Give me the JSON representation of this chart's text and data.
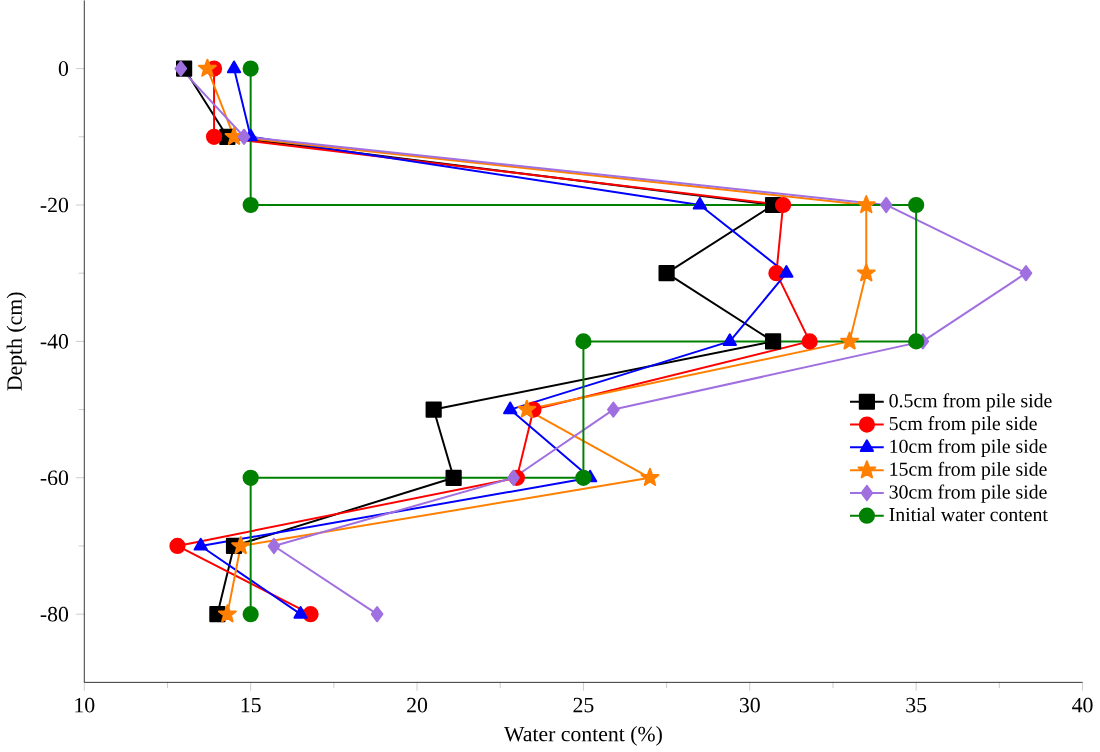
{
  "chart_data": {
    "type": "line",
    "xlabel": "Water content (%)",
    "ylabel": "Depth (cm)",
    "xlim": [
      10,
      40
    ],
    "xticks": [
      10,
      15,
      20,
      25,
      30,
      35,
      40
    ],
    "ylim": [
      -90,
      10
    ],
    "yticks": [
      -80,
      -60,
      -40,
      -20,
      0
    ],
    "legend": "right",
    "grid": false,
    "series": [
      {
        "name": "0.5cm from pile side",
        "color": "#000000",
        "marker": "square",
        "x": [
          13.0,
          14.3,
          30.7,
          27.5,
          30.7,
          20.5,
          21.1,
          14.5,
          14.0
        ],
        "values": [
          0,
          -10,
          -20,
          -30,
          -40,
          -50,
          -60,
          -70,
          -80
        ]
      },
      {
        "name": "5cm from pile side",
        "color": "#ff0000",
        "marker": "circle",
        "x": [
          13.9,
          13.9,
          31.0,
          30.8,
          31.8,
          23.5,
          23.0,
          12.8,
          16.8
        ],
        "values": [
          0,
          -10,
          -20,
          -30,
          -40,
          -50,
          -60,
          -70,
          -80
        ]
      },
      {
        "name": "10cm from pile side",
        "color": "#0000ff",
        "marker": "triangle",
        "x": [
          14.5,
          15.0,
          28.5,
          31.1,
          29.4,
          22.8,
          25.2,
          13.5,
          16.5
        ],
        "values": [
          0,
          -10,
          -20,
          -30,
          -40,
          -50,
          -60,
          -70,
          -80
        ]
      },
      {
        "name": "15cm from pile side",
        "color": "#ff8000",
        "marker": "star",
        "x": [
          13.7,
          14.5,
          33.5,
          33.5,
          33.0,
          23.3,
          27.0,
          14.7,
          14.3
        ],
        "values": [
          0,
          -10,
          -20,
          -30,
          -40,
          -50,
          -60,
          -70,
          -80
        ]
      },
      {
        "name": "30cm from pile side",
        "color": "#a070e0",
        "marker": "diamond",
        "x": [
          12.9,
          14.8,
          34.1,
          38.3,
          35.2,
          25.9,
          22.9,
          15.7,
          18.8
        ],
        "values": [
          0,
          -10,
          -20,
          -30,
          -40,
          -50,
          -60,
          -70,
          -80
        ]
      },
      {
        "name": "Initial water content",
        "color": "#008000",
        "marker": "circle",
        "x": [
          15,
          15,
          35,
          35,
          25,
          25,
          15,
          15
        ],
        "values": [
          0,
          -20,
          -20,
          -40,
          -40,
          -60,
          -60,
          -80
        ]
      }
    ]
  }
}
